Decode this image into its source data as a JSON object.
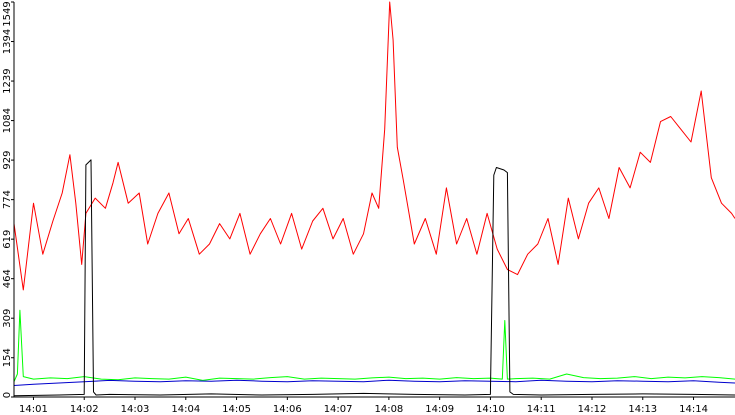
{
  "chart_data": {
    "type": "line",
    "title": "",
    "xlabel": "",
    "ylabel": "",
    "ylim": [
      0,
      1549
    ],
    "grid": false,
    "legend": "none",
    "y_ticks": [
      0,
      154,
      309,
      464,
      619,
      774,
      929,
      1084,
      1239,
      1394,
      1549
    ],
    "x_range": [
      "14:00:37",
      "14:14:49"
    ],
    "x_ticks": [
      "14:01",
      "14:02",
      "14:03",
      "14:04",
      "14:05",
      "14:06",
      "14:07",
      "14:08",
      "14:09",
      "14:10",
      "14:11",
      "14:12",
      "14:13",
      "14:14"
    ],
    "series": [
      {
        "color": "#ff0000",
        "time": [
          "14:00:37",
          "14:00:48",
          "14:01:00",
          "14:01:11",
          "14:01:23",
          "14:01:34",
          "14:01:43",
          "14:01:50",
          "14:01:57",
          "14:02:02",
          "14:02:13",
          "14:02:25",
          "14:02:34",
          "14:02:40",
          "14:02:52",
          "14:03:05",
          "14:03:15",
          "14:03:27",
          "14:03:40",
          "14:03:52",
          "14:04:03",
          "14:04:16",
          "14:04:28",
          "14:04:40",
          "14:04:52",
          "14:05:04",
          "14:05:16",
          "14:05:28",
          "14:05:40",
          "14:05:52",
          "14:06:05",
          "14:06:17",
          "14:06:30",
          "14:06:42",
          "14:06:54",
          "14:07:06",
          "14:07:18",
          "14:07:30",
          "14:07:40",
          "14:07:48",
          "14:07:55",
          "14:08:01",
          "14:08:05",
          "14:08:10",
          "14:08:17",
          "14:08:30",
          "14:08:43",
          "14:08:56",
          "14:09:08",
          "14:09:20",
          "14:09:32",
          "14:09:44",
          "14:09:56",
          "14:10:08",
          "14:10:20",
          "14:10:32",
          "14:10:44",
          "14:10:56",
          "14:11:08",
          "14:11:20",
          "14:11:32",
          "14:11:44",
          "14:11:56",
          "14:12:08",
          "14:12:20",
          "14:12:32",
          "14:12:45",
          "14:12:57",
          "14:13:09",
          "14:13:21",
          "14:13:33",
          "14:13:45",
          "14:13:57",
          "14:14:09",
          "14:14:21",
          "14:14:33",
          "14:14:45",
          "14:14:49"
        ],
        "values": [
          680,
          420,
          760,
          560,
          690,
          800,
          950,
          760,
          520,
          720,
          780,
          740,
          840,
          920,
          760,
          800,
          600,
          720,
          800,
          640,
          700,
          560,
          600,
          680,
          620,
          720,
          560,
          640,
          700,
          600,
          720,
          580,
          690,
          740,
          620,
          700,
          560,
          640,
          800,
          740,
          1050,
          1549,
          1400,
          980,
          850,
          600,
          700,
          560,
          820,
          600,
          700,
          560,
          720,
          580,
          500,
          480,
          560,
          600,
          700,
          520,
          780,
          620,
          760,
          820,
          700,
          900,
          820,
          960,
          920,
          1080,
          1100,
          1050,
          1000,
          1200,
          860,
          760,
          720,
          700
        ]
      },
      {
        "color": "#00ff00",
        "time": [
          "14:00:37",
          "14:00:41",
          "14:00:44",
          "14:00:48",
          "14:01:00",
          "14:01:20",
          "14:01:40",
          "14:02:00",
          "14:02:20",
          "14:02:40",
          "14:03:00",
          "14:03:20",
          "14:03:40",
          "14:04:00",
          "14:04:20",
          "14:04:40",
          "14:05:00",
          "14:05:20",
          "14:05:40",
          "14:06:00",
          "14:06:20",
          "14:06:40",
          "14:07:00",
          "14:07:20",
          "14:07:40",
          "14:08:00",
          "14:08:20",
          "14:08:40",
          "14:09:00",
          "14:09:20",
          "14:09:40",
          "14:10:00",
          "14:10:14",
          "14:10:17",
          "14:10:20",
          "14:10:30",
          "14:10:50",
          "14:11:10",
          "14:11:30",
          "14:11:50",
          "14:12:10",
          "14:12:30",
          "14:12:50",
          "14:13:10",
          "14:13:30",
          "14:13:50",
          "14:14:10",
          "14:14:30",
          "14:14:49"
        ],
        "values": [
          60,
          90,
          340,
          80,
          70,
          75,
          72,
          80,
          70,
          68,
          75,
          72,
          70,
          78,
          65,
          74,
          72,
          70,
          76,
          80,
          70,
          74,
          72,
          70,
          75,
          78,
          72,
          74,
          70,
          76,
          72,
          74,
          70,
          300,
          70,
          72,
          74,
          70,
          90,
          76,
          72,
          74,
          80,
          72,
          78,
          75,
          80,
          76,
          70
        ]
      },
      {
        "color": "#0000cc",
        "time": [
          "14:00:37",
          "14:01:00",
          "14:01:30",
          "14:02:00",
          "14:02:30",
          "14:03:00",
          "14:03:30",
          "14:04:00",
          "14:04:30",
          "14:05:00",
          "14:05:30",
          "14:06:00",
          "14:06:30",
          "14:07:00",
          "14:07:30",
          "14:08:00",
          "14:08:30",
          "14:09:00",
          "14:09:30",
          "14:10:00",
          "14:10:30",
          "14:11:00",
          "14:11:30",
          "14:12:00",
          "14:12:30",
          "14:13:00",
          "14:13:30",
          "14:14:00",
          "14:14:30",
          "14:14:49"
        ],
        "values": [
          45,
          50,
          55,
          60,
          65,
          62,
          60,
          64,
          62,
          66,
          62,
          60,
          64,
          62,
          60,
          66,
          62,
          60,
          64,
          62,
          60,
          66,
          62,
          60,
          64,
          62,
          60,
          64,
          58,
          55
        ]
      },
      {
        "color": "#000000",
        "time": [
          "14:00:37",
          "14:01:30",
          "14:02:00",
          "14:02:02",
          "14:02:05",
          "14:02:08",
          "14:02:11",
          "14:02:14",
          "14:02:30",
          "14:03:30",
          "14:04:30",
          "14:05:30",
          "14:06:30",
          "14:07:30",
          "14:08:30",
          "14:09:30",
          "14:10:00",
          "14:10:04",
          "14:10:07",
          "14:10:16",
          "14:10:20",
          "14:10:23",
          "14:10:27",
          "14:11:00",
          "14:12:00",
          "14:13:00",
          "14:14:00",
          "14:14:49"
        ],
        "values": [
          5,
          8,
          10,
          910,
          920,
          930,
          20,
          8,
          10,
          8,
          12,
          8,
          10,
          14,
          10,
          8,
          10,
          870,
          900,
          890,
          880,
          20,
          10,
          8,
          10,
          12,
          10,
          8
        ]
      }
    ]
  }
}
